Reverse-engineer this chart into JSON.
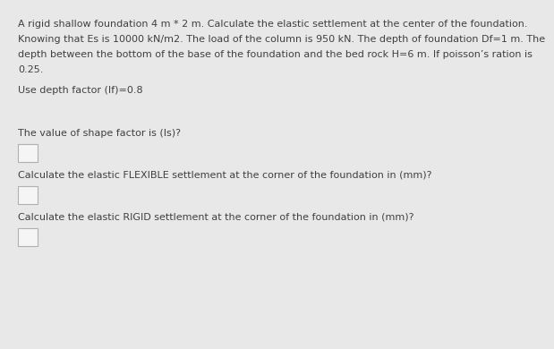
{
  "background_color": "#e8e8e8",
  "text_color": "#404040",
  "paragraph_lines": [
    "A rigid shallow foundation 4 m * 2 m. Calculate the elastic settlement at the center of the foundation.",
    "Knowing that Es is 10000 kN/m2. The load of the column is 950 kN. The depth of foundation Df=1 m. The",
    "depth between the bottom of the base of the foundation and the bed rock H=6 m. If poisson’s ration is",
    "0.25."
  ],
  "depth_factor_line": "Use depth factor (If)=0.8",
  "q1_label": "The value of shape factor is (Is)?",
  "q2_label": "Calculate the elastic FLEXIBLE settlement at the corner of the foundation in (mm)?",
  "q3_label": "Calculate the elastic RIGID settlement at the corner of the foundation in (mm)?",
  "font_size": 8.0,
  "box_edge_color": "#b0b0b0",
  "box_face_color": "#f5f5f5"
}
